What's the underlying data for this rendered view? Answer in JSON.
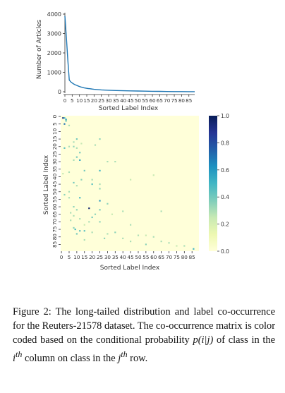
{
  "figure": {
    "top_chart": {
      "ylabel": "Number of Articles",
      "xlabel": "Sorted Label Index",
      "y_ticks": [
        "0",
        "1000",
        "2000",
        "3000",
        "4000"
      ],
      "x_ticks": [
        "0",
        "5",
        "10",
        "15",
        "20",
        "25",
        "30",
        "35",
        "40",
        "45",
        "50",
        "55",
        "60",
        "65",
        "70",
        "75",
        "80",
        "85"
      ]
    },
    "heatmap": {
      "xlabel": "Sorted Label Index",
      "ylabel": "Sorted Label Index",
      "x_ticks": [
        "0",
        "5",
        "10",
        "15",
        "20",
        "25",
        "30",
        "35",
        "40",
        "45",
        "50",
        "55",
        "60",
        "65",
        "70",
        "75",
        "80",
        "85"
      ],
      "y_ticks": [
        "0",
        "5",
        "10",
        "15",
        "20",
        "25",
        "30",
        "35",
        "40",
        "45",
        "50",
        "55",
        "60",
        "65",
        "70",
        "75",
        "80",
        "85"
      ],
      "colorbar_ticks": [
        "1.0",
        "0.8",
        "0.6",
        "0.4",
        "0.2",
        "0.0"
      ]
    }
  },
  "caption": {
    "label": "Figure 2:",
    "text_1": " The long-tailed distribution and label co-occurrence for the Reuters-21578 dataset.  The co-occurrence matrix is color coded based on the conditional probability ",
    "math": "p(i|j)",
    "text_2": " of class in the ",
    "math_i": "i",
    "sup_th_1": "th",
    "text_3": " column on class in the ",
    "math_j": "j",
    "sup_th_2": "th",
    "text_4": " row."
  },
  "chart_data": [
    {
      "type": "line",
      "title": "",
      "xlabel": "Sorted Label Index",
      "ylabel": "Number of Articles",
      "xlim": [
        0,
        89
      ],
      "ylim": [
        0,
        4000
      ],
      "series": [
        {
          "x": [
            0,
            1,
            2,
            3,
            4,
            5,
            6,
            7,
            8,
            9,
            10,
            11,
            12,
            13,
            14,
            15,
            16,
            17,
            18,
            19,
            20,
            25,
            30,
            35,
            40,
            45,
            50,
            55,
            60,
            65,
            70,
            75,
            80,
            85,
            89
          ],
          "y": [
            3900,
            2800,
            1650,
            600,
            510,
            450,
            400,
            360,
            330,
            300,
            270,
            245,
            225,
            205,
            190,
            175,
            165,
            155,
            145,
            135,
            125,
            95,
            75,
            60,
            50,
            42,
            35,
            28,
            22,
            17,
            12,
            9,
            6,
            4,
            2
          ]
        }
      ]
    },
    {
      "type": "heatmap",
      "title": "",
      "xlabel": "Sorted Label Index",
      "ylabel": "Sorted Label Index",
      "n": 90,
      "vmin": 0.0,
      "vmax": 1.0,
      "colormap": "YlGnBu",
      "cells": [
        [
          1,
          1,
          0.9
        ],
        [
          1,
          2,
          0.5
        ],
        [
          2,
          3,
          0.6
        ],
        [
          3,
          3,
          0.4
        ],
        [
          5,
          2,
          0.7
        ],
        [
          6,
          5,
          0.3
        ],
        [
          15,
          10,
          0.4
        ],
        [
          15,
          25,
          0.35
        ],
        [
          17,
          8,
          0.3
        ],
        [
          18,
          13,
          0.25
        ],
        [
          19,
          22,
          0.3
        ],
        [
          20,
          8,
          0.35
        ],
        [
          20,
          5,
          0.3
        ],
        [
          21,
          10,
          0.3
        ],
        [
          21,
          2,
          0.45
        ],
        [
          24,
          12,
          0.4
        ],
        [
          27,
          10,
          0.4
        ],
        [
          29,
          12,
          0.55
        ],
        [
          29,
          8,
          0.3
        ],
        [
          30,
          30,
          0.3
        ],
        [
          30,
          35,
          0.3
        ],
        [
          36,
          15,
          0.4
        ],
        [
          36,
          25,
          0.5
        ],
        [
          37,
          5,
          0.3
        ],
        [
          38,
          1,
          0.25
        ],
        [
          39,
          60,
          0.25
        ],
        [
          42,
          13,
          0.35
        ],
        [
          42,
          20,
          0.3
        ],
        [
          42,
          45,
          0.25
        ],
        [
          44,
          8,
          0.4
        ],
        [
          45,
          20,
          0.45
        ],
        [
          45,
          25,
          0.3
        ],
        [
          46,
          10,
          0.3
        ],
        [
          48,
          25,
          0.35
        ],
        [
          50,
          5,
          0.3
        ],
        [
          52,
          2,
          0.35
        ],
        [
          54,
          12,
          0.5
        ],
        [
          54,
          5,
          0.3
        ],
        [
          56,
          25,
          0.6
        ],
        [
          58,
          30,
          0.35
        ],
        [
          60,
          8,
          0.35
        ],
        [
          61,
          18,
          0.95
        ],
        [
          62,
          10,
          0.35
        ],
        [
          62,
          25,
          0.4
        ],
        [
          63,
          40,
          0.3
        ],
        [
          63,
          65,
          0.3
        ],
        [
          64,
          6,
          0.3
        ],
        [
          65,
          22,
          0.35
        ],
        [
          65,
          33,
          0.25
        ],
        [
          66,
          8,
          0.3
        ],
        [
          67,
          20,
          0.4
        ],
        [
          68,
          12,
          0.3
        ],
        [
          69,
          6,
          0.3
        ],
        [
          70,
          18,
          0.3
        ],
        [
          70,
          25,
          0.35
        ],
        [
          72,
          15,
          0.25
        ],
        [
          72,
          45,
          0.3
        ],
        [
          74,
          8,
          0.35
        ],
        [
          75,
          9,
          0.5
        ],
        [
          76,
          12,
          0.45
        ],
        [
          76,
          15,
          0.45
        ],
        [
          77,
          20,
          0.3
        ],
        [
          77,
          35,
          0.35
        ],
        [
          78,
          10,
          0.4
        ],
        [
          78,
          30,
          0.3
        ],
        [
          79,
          50,
          0.3
        ],
        [
          79,
          55,
          0.25
        ],
        [
          80,
          60,
          0.3
        ],
        [
          81,
          28,
          0.35
        ],
        [
          81,
          40,
          0.3
        ],
        [
          82,
          15,
          0.3
        ],
        [
          83,
          45,
          0.3
        ],
        [
          83,
          65,
          0.3
        ],
        [
          84,
          70,
          0.3
        ],
        [
          85,
          55,
          0.35
        ],
        [
          86,
          75,
          0.25
        ],
        [
          86,
          80,
          0.3
        ],
        [
          88,
          86,
          0.5
        ]
      ]
    }
  ]
}
